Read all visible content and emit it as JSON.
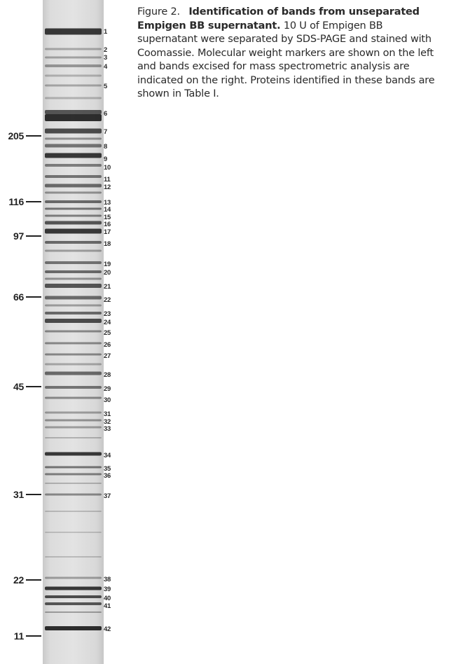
{
  "figure": {
    "label": "Figure 2.",
    "title": "Identification of bands from unseparated Empigen BB supernatant.",
    "body": "10 U of Empigen BB supernatant were separated by SDS-PAGE and stained with Coomassie. Molecular weight markers are shown on the left and bands excised for mass spectrometric analysis are indicated on the right. Proteins identified in these bands are shown in Table I."
  },
  "markers": [
    {
      "label": "205",
      "mw": 205
    },
    {
      "label": "116",
      "mw": 116
    },
    {
      "label": "97",
      "mw": 97
    },
    {
      "label": "66",
      "mw": 66
    },
    {
      "label": "45",
      "mw": 45
    },
    {
      "label": "31",
      "mw": 31
    },
    {
      "label": "22",
      "mw": 22
    },
    {
      "label": "11",
      "mw": 11
    }
  ],
  "bands": [
    "1",
    "2",
    "3",
    "4",
    "5",
    "6",
    "7",
    "8",
    "9",
    "10",
    "11",
    "12",
    "13",
    "14",
    "15",
    "16",
    "17",
    "18",
    "19",
    "20",
    "21",
    "22",
    "23",
    "24",
    "25",
    "26",
    "27",
    "28",
    "29",
    "30",
    "31",
    "32",
    "33",
    "34",
    "35",
    "36",
    "37",
    "38",
    "39",
    "40",
    "41",
    "42"
  ]
}
